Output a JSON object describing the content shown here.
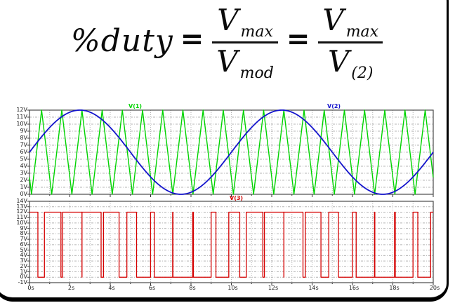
{
  "formula": {
    "lhs": "%duty",
    "eq1": "=",
    "eq2": "=",
    "frac1": {
      "num_base": "V",
      "num_sub": "max",
      "den_base": "V",
      "den_sub": "mod"
    },
    "frac2": {
      "num_base": "V",
      "num_sub": "max",
      "den_base": "V",
      "den_sub": "(2)"
    }
  },
  "colors": {
    "triangle_green": "#00d400",
    "sine_blue": "#1414cc",
    "pwm_red": "#d40000",
    "grid_gray": "#b4b4b4",
    "frame_gray": "#4a4a4a",
    "tick_text": "#1c1c1c"
  },
  "chart_data": [
    {
      "type": "line",
      "title": "",
      "x": {
        "range": [
          0,
          20
        ],
        "unit": "s",
        "grid_step": 1,
        "label_step": 2,
        "tick_labels": []
      },
      "y": {
        "range": [
          0,
          12
        ],
        "unit": "V",
        "grid_step": 1,
        "tick_labels": [
          "12V",
          "11V",
          "10V",
          "9V",
          "8V",
          "7V",
          "6V",
          "5V",
          "4V",
          "3V",
          "2V",
          "1V",
          "0V"
        ]
      },
      "grid": true,
      "legend_position": "inside-top",
      "series": [
        {
          "name": "V(1)",
          "color": "#00d400",
          "waveform": "triangle",
          "min": 0,
          "max": 12,
          "period_s": 1,
          "trough_at_s": 0.1,
          "label_x_s": 4.9
        },
        {
          "name": "V(2)",
          "color": "#1414cc",
          "waveform": "sine",
          "offset_v": 6,
          "amplitude_v": 6,
          "period_s": 10,
          "phase_deg": 0,
          "label_x_s": 14.75
        }
      ]
    },
    {
      "type": "line",
      "title": "",
      "x": {
        "range": [
          0,
          20
        ],
        "unit": "s",
        "grid_step": 1,
        "label_step": 2,
        "tick_labels": [
          "0s",
          "2s",
          "4s",
          "6s",
          "8s",
          "10s",
          "12s",
          "14s",
          "16s",
          "18s",
          "20s"
        ]
      },
      "y": {
        "range": [
          -1,
          14
        ],
        "unit": "V",
        "grid_step": 1,
        "tick_labels": [
          "14V",
          "13V",
          "12V",
          "11V",
          "10V",
          "9V",
          "8V",
          "7V",
          "6V",
          "5V",
          "4V",
          "3V",
          "2V",
          "1V",
          "0V",
          "-1V"
        ]
      },
      "grid": true,
      "legend_position": "inside-top",
      "series": [
        {
          "name": "V(3)",
          "color": "#d40000",
          "waveform": "pwm",
          "high_v": 12,
          "low_v": 0,
          "rule": "high when V(2) >= V(1)",
          "modulator": {
            "waveform": "sine",
            "offset_v": 6,
            "amplitude_v": 6,
            "period_s": 10,
            "phase_deg": 0
          },
          "carrier": {
            "waveform": "triangle",
            "min": 0,
            "max": 12,
            "period_s": 1,
            "trough_at_s": 0.1
          },
          "label_x_s": 9.9
        }
      ]
    }
  ]
}
